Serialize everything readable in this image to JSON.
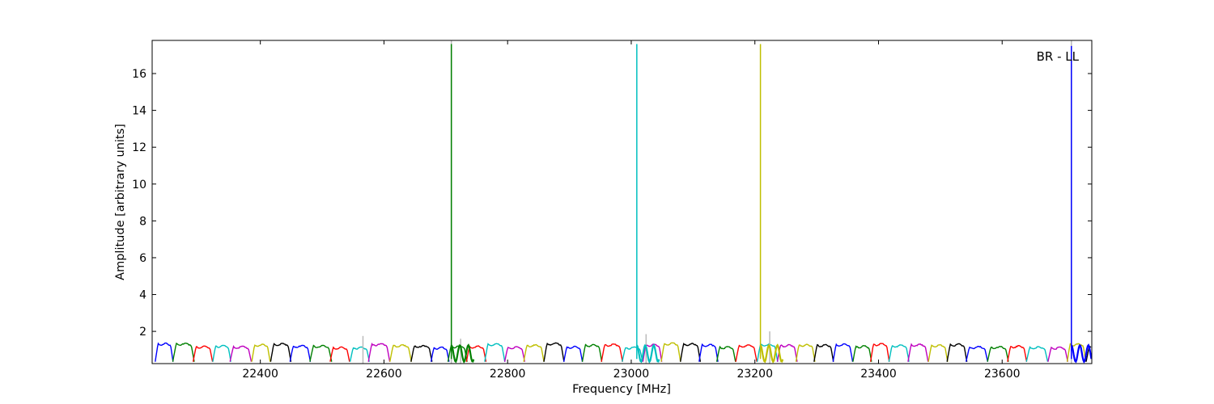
{
  "chart_data": {
    "type": "line",
    "xlabel": "Frequency [MHz]",
    "ylabel": "Amplitude [arbitrary units]",
    "annotation": "BR - LL",
    "xlim": [
      22225,
      23745
    ],
    "ylim": [
      0.25,
      17.8
    ],
    "x_ticks": [
      22400,
      22600,
      22800,
      23000,
      23200,
      23400,
      23600
    ],
    "y_ticks": [
      2,
      4,
      6,
      8,
      10,
      12,
      14,
      16
    ],
    "grid": false,
    "legend": "none",
    "color_cycle": [
      "#0000ff",
      "#008000",
      "#ff0000",
      "#00bfbf",
      "#bf00bf",
      "#bfbf00",
      "#000000"
    ],
    "channel_pattern": {
      "start_frequency": 22230,
      "channel_width": 32,
      "typical_amplitude": 1.2,
      "edge_amplitude": 0.35
    },
    "spikes": [
      {
        "frequency": 22709,
        "amplitude": 17.6,
        "color": "#008000"
      },
      {
        "frequency": 23009,
        "amplitude": 17.6,
        "color": "#00bfbf"
      },
      {
        "frequency": 23209,
        "amplitude": 17.6,
        "color": "#bfbf00"
      },
      {
        "frequency": 23712,
        "amplitude": 17.5,
        "color": "#0000ff"
      }
    ],
    "gray_markers": [
      {
        "frequency": 22566,
        "amplitude": 1.75
      },
      {
        "frequency": 22724,
        "amplitude": 1.6
      },
      {
        "frequency": 23024,
        "amplitude": 1.85
      },
      {
        "frequency": 23224,
        "amplitude": 2.0
      },
      {
        "frequency": 22709,
        "amplitude": 17.8
      },
      {
        "frequency": 23712,
        "amplitude": 17.8
      }
    ]
  }
}
